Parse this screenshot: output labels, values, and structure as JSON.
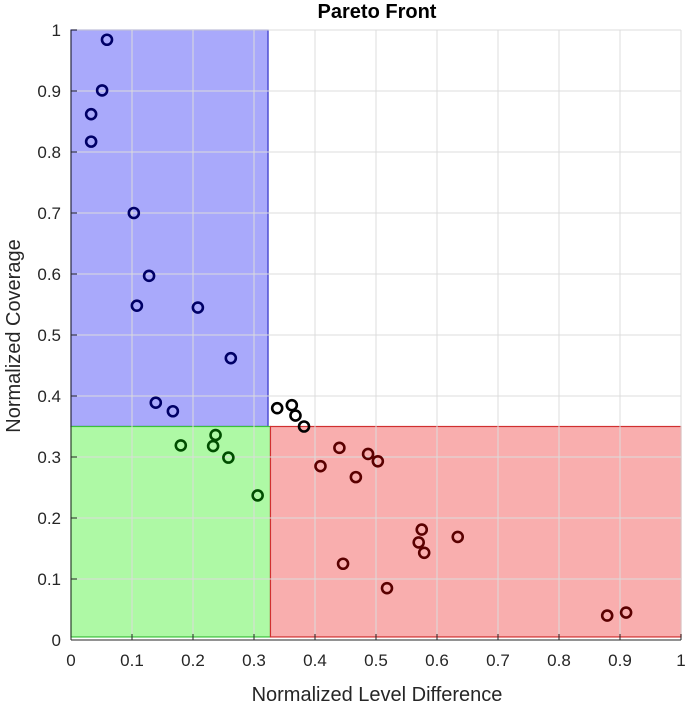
{
  "chart_data": {
    "type": "scatter",
    "title": "Pareto Front",
    "xlabel": "Normalized Level Difference",
    "ylabel": "Normalized Coverage",
    "xlim": [
      0,
      1
    ],
    "ylim": [
      0,
      1
    ],
    "xticks": [
      "0",
      "0.1",
      "0.2",
      "0.3",
      "0.4",
      "0.5",
      "0.6",
      "0.7",
      "0.8",
      "0.9",
      "1"
    ],
    "yticks": [
      "0",
      "0.1",
      "0.2",
      "0.3",
      "0.4",
      "0.5",
      "0.6",
      "0.7",
      "0.8",
      "0.9",
      "1"
    ],
    "grid": true,
    "regions": [
      {
        "x": [
          0,
          0.323
        ],
        "y": [
          0.35,
          1
        ],
        "fill": "#a9a9fb",
        "edge": "#3030c8"
      },
      {
        "x": [
          0,
          0.327
        ],
        "y": [
          0.005,
          0.35
        ],
        "fill": "#aef9a5",
        "edge": "#3cc03c"
      },
      {
        "x": [
          0.327,
          1
        ],
        "y": [
          0.005,
          0.35
        ],
        "fill": "#f9aeae",
        "edge": "#d03030"
      }
    ],
    "series": [
      {
        "color": "#000066",
        "points": [
          [
            0.059,
            0.984
          ],
          [
            0.051,
            0.901
          ],
          [
            0.033,
            0.862
          ],
          [
            0.033,
            0.817
          ],
          [
            0.103,
            0.7
          ],
          [
            0.128,
            0.597
          ],
          [
            0.108,
            0.548
          ],
          [
            0.208,
            0.545
          ],
          [
            0.262,
            0.462
          ],
          [
            0.139,
            0.389
          ],
          [
            0.167,
            0.375
          ]
        ]
      },
      {
        "color": "#004d00",
        "points": [
          [
            0.18,
            0.319
          ],
          [
            0.237,
            0.336
          ],
          [
            0.233,
            0.318
          ],
          [
            0.258,
            0.299
          ],
          [
            0.306,
            0.237
          ]
        ]
      },
      {
        "color": "#000000",
        "points": [
          [
            0.338,
            0.38
          ],
          [
            0.362,
            0.385
          ],
          [
            0.368,
            0.368
          ],
          [
            0.382,
            0.35
          ]
        ]
      },
      {
        "color": "#5a0000",
        "points": [
          [
            0.44,
            0.315
          ],
          [
            0.487,
            0.305
          ],
          [
            0.503,
            0.293
          ],
          [
            0.409,
            0.285
          ],
          [
            0.467,
            0.267
          ],
          [
            0.575,
            0.181
          ],
          [
            0.634,
            0.169
          ],
          [
            0.57,
            0.16
          ],
          [
            0.579,
            0.143
          ],
          [
            0.446,
            0.125
          ],
          [
            0.518,
            0.085
          ],
          [
            0.879,
            0.04
          ],
          [
            0.91,
            0.045
          ]
        ]
      }
    ]
  }
}
